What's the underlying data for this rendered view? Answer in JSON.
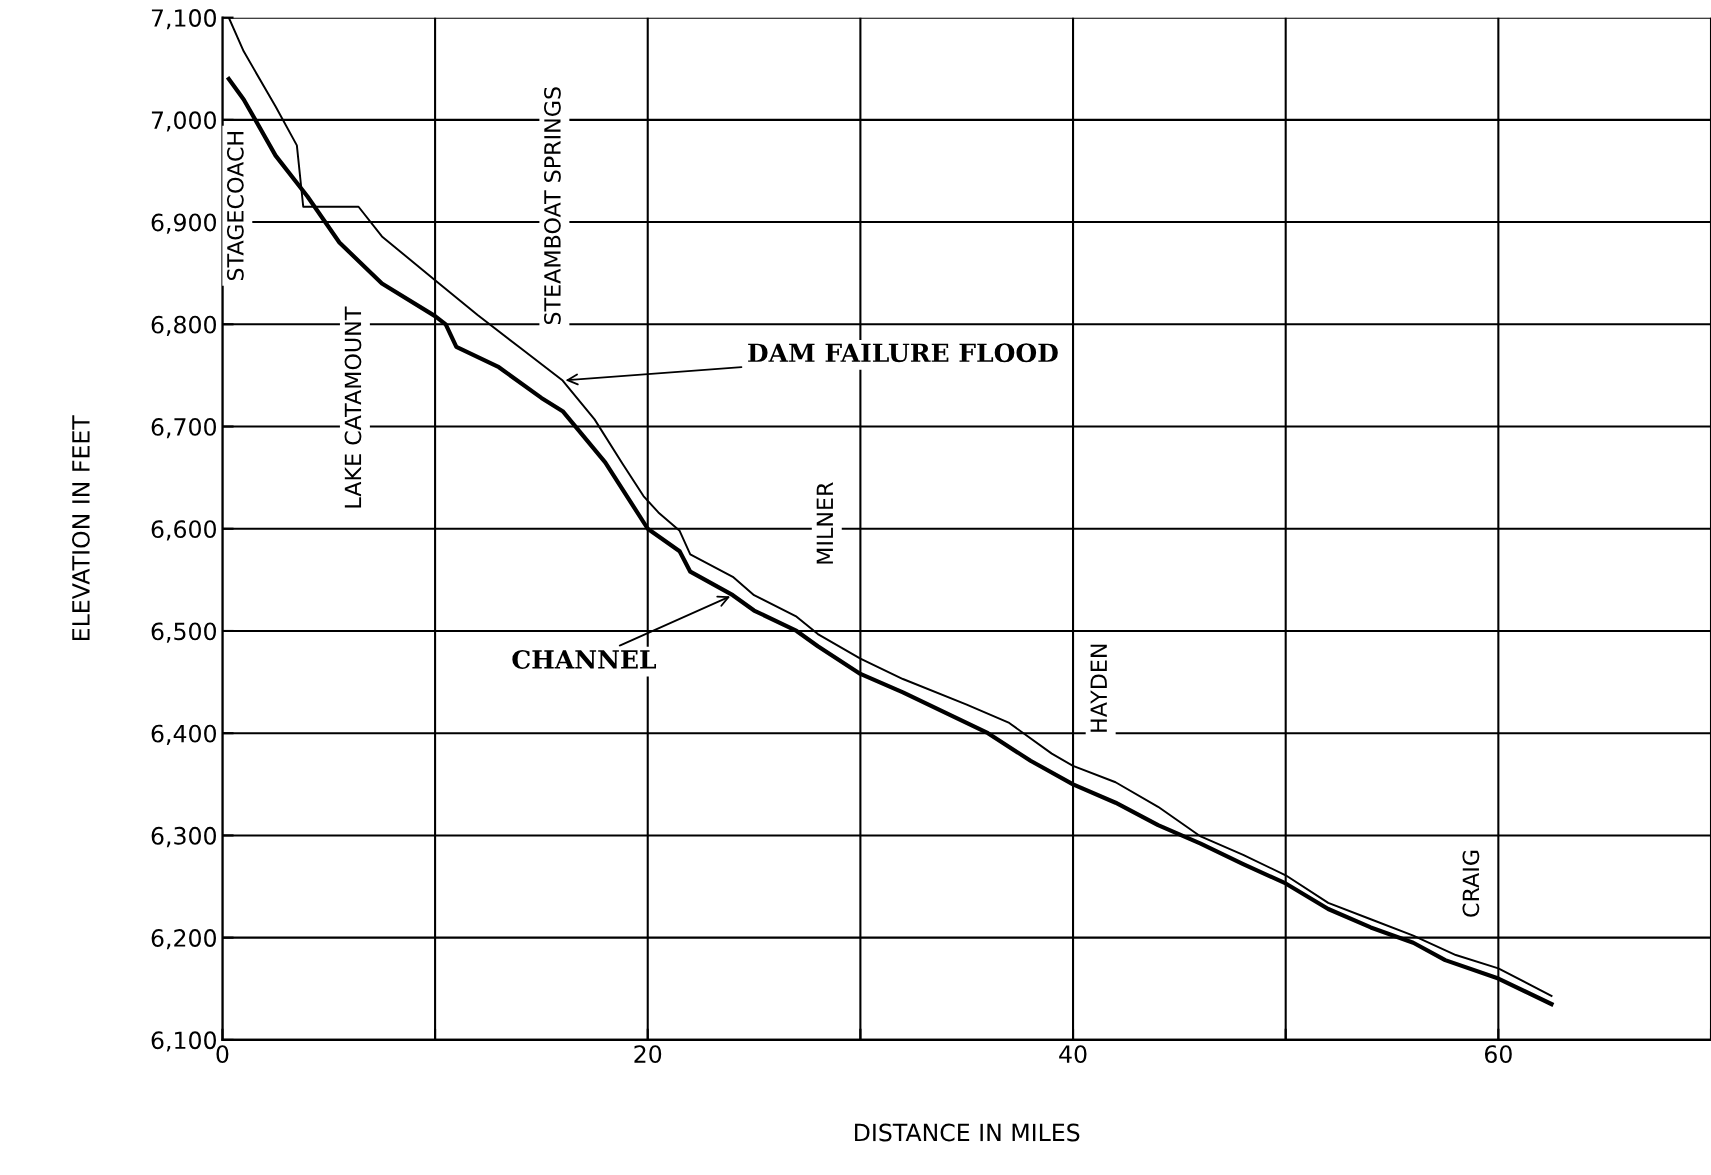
{
  "chart_data": {
    "type": "line",
    "xlabel": "DISTANCE IN MILES",
    "ylabel": "ELEVATION IN FEET",
    "xlim": [
      0,
      70
    ],
    "ylim": [
      6100,
      7100
    ],
    "xticks": [
      0,
      {
        "value": 10,
        "label": null
      },
      20,
      {
        "value": 30,
        "label": null
      },
      40,
      {
        "value": 50,
        "label": null
      },
      60,
      {
        "value": 70,
        "label": null
      }
    ],
    "yticks": [
      {
        "value": 6100,
        "label": "6,100"
      },
      {
        "value": 6200,
        "label": "6,200"
      },
      {
        "value": 6300,
        "label": "6,300"
      },
      {
        "value": 6400,
        "label": "6,400"
      },
      {
        "value": 6500,
        "label": "6,500"
      },
      {
        "value": 6600,
        "label": "6,600"
      },
      {
        "value": 6700,
        "label": "6,700"
      },
      {
        "value": 6800,
        "label": "6,800"
      },
      {
        "value": 6900,
        "label": "6,900"
      },
      {
        "value": 7000,
        "label": "7,000"
      },
      {
        "value": 7100,
        "label": "7,100"
      }
    ],
    "grid": true,
    "legend": false,
    "marker": "none",
    "line_style": "solid",
    "series": [
      {
        "color": "#000000",
        "x": [
          0.3,
          1,
          2.5,
          3.5,
          3.8,
          6.4,
          7.5,
          10,
          12,
          14,
          16,
          17.5,
          18.8,
          19.8,
          20.5,
          21.5,
          22,
          24,
          25,
          27,
          28,
          30,
          32,
          35,
          37,
          39,
          40,
          42,
          44,
          46,
          48,
          50,
          52,
          54,
          56,
          58,
          60,
          62.5
        ],
        "values": [
          7100,
          7067,
          7013,
          6975,
          6915,
          6915,
          6886,
          6843,
          6809,
          6777,
          6745,
          6707,
          6664,
          6632,
          6616,
          6598,
          6575,
          6553,
          6535,
          6514,
          6497,
          6473,
          6453,
          6428,
          6410,
          6380,
          6368,
          6352,
          6328,
          6299,
          6281,
          6261,
          6234,
          6218,
          6202,
          6183,
          6170,
          6143
        ]
      },
      {
        "color": "#000000",
        "x": [
          0.3,
          1,
          2.5,
          4,
          5.5,
          7.5,
          10,
          10.5,
          11,
          13,
          15,
          16,
          18,
          20,
          21.5,
          22,
          24,
          25,
          27,
          28,
          30,
          32,
          36,
          38,
          40,
          42,
          44,
          46,
          48,
          50,
          52,
          54,
          56,
          57.5,
          60,
          62.5
        ],
        "values": [
          7040,
          7020,
          6965,
          6925,
          6880,
          6840,
          6808,
          6800,
          6778,
          6758,
          6728,
          6715,
          6665,
          6600,
          6578,
          6558,
          6535,
          6520,
          6500,
          6485,
          6458,
          6440,
          6400,
          6373,
          6350,
          6332,
          6310,
          6292,
          6272,
          6253,
          6228,
          6210,
          6195,
          6178,
          6160,
          6135
        ]
      }
    ],
    "annotations": [
      "STAGECOACH",
      "LAKE CATAMOUNT",
      "STEAMBOAT SPRINGS",
      "MILNER",
      "HAYDEN",
      "CRAIG",
      {
        "text": "DAM FAILURE FLOOD",
        "x": 16,
        "y": 6745
      },
      {
        "text": "CHANNEL",
        "x": 24,
        "y": 6535
      }
    ]
  }
}
